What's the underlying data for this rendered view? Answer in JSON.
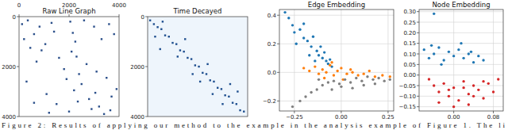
{
  "chart_data": [
    {
      "type": "spy",
      "title": "Raw Line Graph",
      "xlim": [
        0,
        4000
      ],
      "ylim": [
        0,
        4000
      ],
      "xticks": [
        0,
        2000,
        4000
      ],
      "yticks": [
        0,
        2000,
        4000
      ],
      "grid": false,
      "marker": "square",
      "series": [
        {
          "color": "#2b4f8a",
          "x": [
            120,
            350,
            600,
            820,
            1050,
            1300,
            450,
            900,
            200,
            1400,
            2050,
            2150,
            2250,
            2100,
            2300,
            2600,
            3000,
            3300,
            3600,
            3800,
            700,
            1600,
            1800,
            2400,
            2700,
            1900,
            2500,
            3100,
            3500,
            3900,
            300,
            1100,
            2200,
            2800,
            3200,
            3700,
            1500,
            2000,
            2900,
            3400,
            600,
            1200,
            2350,
            3050,
            3650
          ],
          "values": [
            300,
            150,
            700,
            400,
            1100,
            250,
            1250,
            1350,
            900,
            600,
            200,
            650,
            1000,
            1400,
            1600,
            150,
            400,
            900,
            300,
            700,
            1800,
            1650,
            2100,
            2300,
            1900,
            2500,
            2700,
            2200,
            2450,
            2900,
            2600,
            3100,
            2950,
            3300,
            3600,
            3200,
            3500,
            3800,
            3700,
            3900,
            3450,
            3850,
            3400,
            3050,
            3750
          ]
        }
      ]
    },
    {
      "type": "spy",
      "title": "Time Decayed",
      "xlim": [
        0,
        4000
      ],
      "ylim": [
        0,
        4000
      ],
      "yticks": [
        0,
        2000,
        4000
      ],
      "tick_labels": "y",
      "grid": false,
      "marker": "square",
      "series": [
        {
          "color": "#1f4f8f",
          "x": [
            100,
            250,
            400,
            550,
            700,
            850,
            1000,
            1150,
            1300,
            1450,
            1600,
            1750,
            1900,
            2050,
            2200,
            2350,
            2500,
            2650,
            2800,
            2950,
            3100,
            3250,
            3400,
            3550,
            3700,
            3850,
            300,
            600,
            1200,
            1500,
            2100,
            2400,
            3000,
            3300,
            500,
            2600,
            1800,
            3600
          ],
          "values": [
            150,
            300,
            420,
            500,
            750,
            800,
            1050,
            1100,
            1350,
            1400,
            1650,
            1700,
            1950,
            2000,
            2250,
            2300,
            2550,
            2600,
            2850,
            2900,
            3150,
            3200,
            3450,
            3500,
            3750,
            3800,
            800,
            200,
            1600,
            900,
            2600,
            1900,
            3500,
            2700,
            1300,
            3100,
            2300,
            3000
          ]
        }
      ]
    },
    {
      "type": "scatter",
      "title": "Edge Embedding",
      "xlim": [
        -0.33,
        0.28
      ],
      "ylim": [
        -0.27,
        0.44
      ],
      "xticks": [
        {
          "value": -0.25,
          "label": "−0.25"
        },
        {
          "value": 0,
          "label": "0.00"
        },
        0.25
      ],
      "yticks": [
        {
          "value": -0.2,
          "label": "−0.2"
        },
        {
          "value": 0,
          "label": "0.0"
        },
        0.2,
        0.4
      ],
      "grid": true,
      "marker": "circle",
      "series": [
        {
          "color": "#1f77b4",
          "x": [
            -0.3,
            -0.28,
            -0.26,
            -0.25,
            -0.22,
            -0.2,
            -0.18,
            -0.16,
            -0.15,
            -0.13,
            -0.12,
            -0.1,
            -0.09,
            -0.08,
            -0.07,
            -0.06,
            -0.05,
            -0.2,
            -0.24,
            -0.14,
            -0.11,
            -0.17
          ],
          "values": [
            0.42,
            0.38,
            0.33,
            0.28,
            0.3,
            0.24,
            0.22,
            0.18,
            0.25,
            0.15,
            0.12,
            0.1,
            0.14,
            0.08,
            0.06,
            0.09,
            0.04,
            0.34,
            0.2,
            0.08,
            0.18,
            0.12
          ]
        },
        {
          "color": "#ff7f0e",
          "x": [
            -0.2,
            -0.17,
            -0.14,
            -0.12,
            -0.1,
            -0.08,
            -0.06,
            -0.04,
            -0.02,
            0.0,
            0.03,
            0.06,
            0.09,
            0.12,
            0.15,
            0.18,
            0.22,
            0.26,
            -0.09,
            -0.05,
            0.01,
            0.05
          ],
          "values": [
            0.03,
            0.01,
            0.04,
            -0.01,
            0.02,
            0.0,
            0.05,
            -0.02,
            0.01,
            0.03,
            -0.01,
            0.0,
            -0.02,
            -0.01,
            0.01,
            -0.03,
            -0.02,
            -0.03,
            -0.04,
            0.07,
            -0.05,
            0.02
          ]
        },
        {
          "color": "#7f7f7f",
          "x": [
            -0.26,
            -0.22,
            -0.19,
            -0.16,
            -0.13,
            -0.1,
            -0.07,
            -0.04,
            -0.01,
            0.02,
            0.05,
            0.08,
            0.11,
            0.14,
            0.17,
            0.2,
            0.23,
            0.26,
            -0.05,
            0.0,
            0.06,
            0.12,
            -0.12,
            0.18
          ],
          "values": [
            -0.24,
            -0.2,
            -0.17,
            -0.14,
            -0.12,
            -0.09,
            -0.07,
            -0.06,
            -0.08,
            -0.05,
            -0.07,
            -0.04,
            -0.06,
            -0.03,
            -0.05,
            -0.04,
            -0.06,
            -0.05,
            -0.12,
            -0.1,
            -0.11,
            -0.09,
            -0.05,
            -0.08
          ]
        }
      ]
    },
    {
      "type": "scatter",
      "title": "Node Embedding",
      "xlim": [
        -0.07,
        0.1
      ],
      "ylim": [
        -0.17,
        0.31
      ],
      "xticks": [
        {
          "value": 0,
          "label": "0.00"
        },
        0.08
      ],
      "yticks": [
        {
          "value": -0.15,
          "label": "−0.15"
        },
        {
          "value": -0.1,
          "label": "−0.10"
        },
        {
          "value": -0.05,
          "label": "−0.05"
        },
        {
          "value": 0,
          "label": "0.00"
        },
        0.05,
        {
          "value": 0.1,
          "label": "0.10"
        },
        0.15,
        {
          "value": 0.2,
          "label": "0.20"
        },
        0.25,
        {
          "value": 0.3,
          "label": "0.30"
        }
      ],
      "grid": true,
      "marker": "circle",
      "series": [
        {
          "color": "#1f77b4",
          "x": [
            -0.06,
            -0.05,
            -0.04,
            -0.03,
            -0.02,
            -0.01,
            0.0,
            0.01,
            0.02,
            0.03,
            0.04,
            0.05,
            0.06,
            -0.045,
            -0.025,
            0.015,
            0.035,
            -0.04
          ],
          "values": [
            0.12,
            0.08,
            0.1,
            0.13,
            0.07,
            0.11,
            0.09,
            0.12,
            0.08,
            0.1,
            0.06,
            0.09,
            0.07,
            0.14,
            0.05,
            0.15,
            0.11,
            0.29
          ]
        },
        {
          "color": "#d62728",
          "x": [
            -0.05,
            -0.04,
            -0.03,
            -0.02,
            -0.01,
            0.0,
            0.01,
            0.02,
            0.03,
            0.04,
            0.05,
            0.06,
            0.07,
            0.08,
            0.09,
            -0.03,
            0.0,
            0.02,
            0.04,
            0.06,
            -0.01,
            0.03
          ],
          "values": [
            -0.02,
            -0.05,
            -0.08,
            -0.04,
            -0.1,
            -0.06,
            -0.12,
            -0.03,
            -0.09,
            -0.05,
            -0.07,
            -0.11,
            -0.04,
            -0.08,
            -0.02,
            -0.13,
            -0.15,
            -0.06,
            -0.1,
            -0.03,
            -0.07,
            -0.14
          ]
        }
      ]
    }
  ],
  "caption": "Figure 2: Results of applying our method to the example in the analysis example of Figure 1. The li"
}
